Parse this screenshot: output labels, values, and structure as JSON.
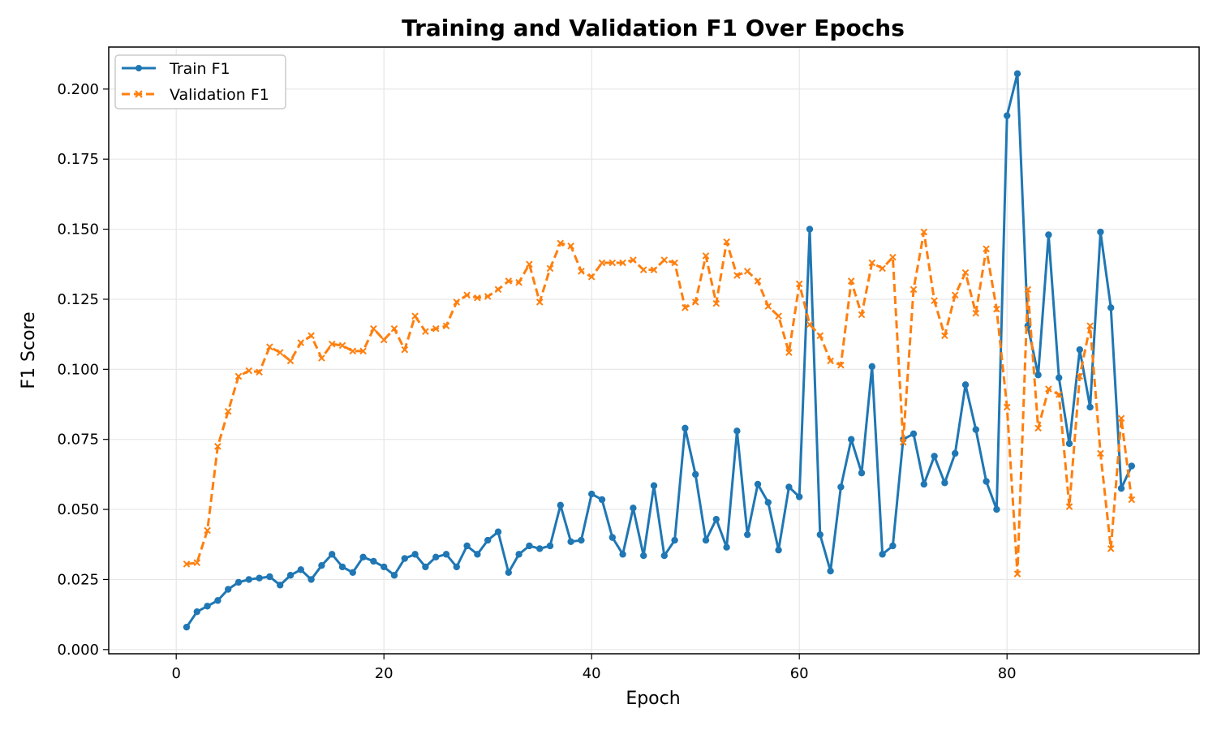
{
  "chart_data": {
    "type": "line",
    "title": "Training and Validation F1 Over Epochs",
    "xlabel": "Epoch",
    "ylabel": "F1 Score",
    "xlim": [
      -6.5,
      98.5
    ],
    "ylim": [
      -0.0015,
      0.215
    ],
    "xticks": [
      0,
      20,
      40,
      60,
      80
    ],
    "xtick_labels": [
      "0",
      "20",
      "40",
      "60",
      "80"
    ],
    "yticks": [
      0.0,
      0.025,
      0.05,
      0.075,
      0.1,
      0.125,
      0.15,
      0.175,
      0.2
    ],
    "ytick_labels": [
      "0.000",
      "0.025",
      "0.050",
      "0.075",
      "0.100",
      "0.125",
      "0.150",
      "0.175",
      "0.200"
    ],
    "grid": true,
    "legend_position": "top-left",
    "x": [
      1,
      2,
      3,
      4,
      5,
      6,
      7,
      8,
      9,
      10,
      11,
      12,
      13,
      14,
      15,
      16,
      17,
      18,
      19,
      20,
      21,
      22,
      23,
      24,
      25,
      26,
      27,
      28,
      29,
      30,
      31,
      32,
      33,
      34,
      35,
      36,
      37,
      38,
      39,
      40,
      41,
      42,
      43,
      44,
      45,
      46,
      47,
      48,
      49,
      50,
      51,
      52,
      53,
      54,
      55,
      56,
      57,
      58,
      59,
      60,
      61,
      62,
      63,
      64,
      65,
      66,
      67,
      68,
      69,
      70,
      71,
      72,
      73,
      74,
      75,
      76,
      77,
      78,
      79,
      80,
      81,
      82,
      83,
      84,
      85,
      86,
      87,
      88,
      89,
      90,
      91,
      92
    ],
    "series": [
      {
        "name": "Train F1",
        "color": "#1f77b4",
        "marker": "circle",
        "linestyle": "solid",
        "values": [
          0.008,
          0.0135,
          0.0155,
          0.0175,
          0.0215,
          0.024,
          0.025,
          0.0255,
          0.026,
          0.023,
          0.0265,
          0.0285,
          0.025,
          0.03,
          0.034,
          0.0295,
          0.0275,
          0.033,
          0.0315,
          0.0295,
          0.0265,
          0.0325,
          0.034,
          0.0295,
          0.033,
          0.034,
          0.0295,
          0.037,
          0.034,
          0.039,
          0.042,
          0.0275,
          0.034,
          0.037,
          0.036,
          0.037,
          0.0515,
          0.0385,
          0.039,
          0.0555,
          0.0535,
          0.04,
          0.034,
          0.0505,
          0.0335,
          0.0585,
          0.0335,
          0.039,
          0.079,
          0.0625,
          0.039,
          0.0465,
          0.0365,
          0.078,
          0.041,
          0.059,
          0.0525,
          0.0355,
          0.058,
          0.0545,
          0.15,
          0.041,
          0.028,
          0.058,
          0.075,
          0.063,
          0.101,
          0.034,
          0.037,
          0.075,
          0.077,
          0.059,
          0.069,
          0.0595,
          0.07,
          0.0945,
          0.0785,
          0.06,
          0.05,
          0.1905,
          0.2055,
          0.1155,
          0.098,
          0.148,
          0.097,
          0.0735,
          0.107,
          0.0865,
          0.149,
          0.122,
          0.0575,
          0.0655
        ]
      },
      {
        "name": "Validation F1",
        "color": "#ff7f0e",
        "marker": "x",
        "linestyle": "dashed",
        "values": [
          0.0305,
          0.031,
          0.0425,
          0.0725,
          0.085,
          0.0975,
          0.0995,
          0.099,
          0.108,
          0.106,
          0.103,
          0.1095,
          0.112,
          0.104,
          0.109,
          0.1085,
          0.1065,
          0.1065,
          0.1145,
          0.1105,
          0.1145,
          0.107,
          0.119,
          0.1135,
          0.1145,
          0.1155,
          0.124,
          0.1265,
          0.1255,
          0.126,
          0.1285,
          0.1315,
          0.131,
          0.1375,
          0.124,
          0.136,
          0.145,
          0.144,
          0.135,
          0.133,
          0.138,
          0.138,
          0.138,
          0.139,
          0.1355,
          0.1355,
          0.139,
          0.138,
          0.122,
          0.124,
          0.1405,
          0.1235,
          0.1455,
          0.1335,
          0.135,
          0.1315,
          0.1225,
          0.119,
          0.106,
          0.1305,
          0.116,
          0.112,
          0.103,
          0.1015,
          0.1315,
          0.1195,
          0.138,
          0.136,
          0.14,
          0.074,
          0.1285,
          0.149,
          0.1245,
          0.112,
          0.1265,
          0.1345,
          0.12,
          0.143,
          0.1215,
          0.0865,
          0.027,
          0.1285,
          0.079,
          0.093,
          0.091,
          0.051,
          0.0975,
          0.1155,
          0.07,
          0.036,
          0.0825,
          0.0535
        ]
      }
    ]
  }
}
